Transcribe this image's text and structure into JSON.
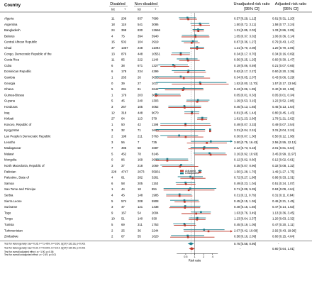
{
  "headers": {
    "country": "Country",
    "disabled": "Disabled",
    "non_disabled": "Non-disabled",
    "unadjusted": "Unadjusted risk ratio",
    "unadjusted_ci": "[95% CI]",
    "adjusted": "Adjusted risk ratio",
    "adjusted_ci": "[95% CI]",
    "tot": "tot",
    "plus": "+"
  },
  "legend": {
    "adjusted": "Adjusted",
    "unadjusted": "Unadjusted"
  },
  "x_axis_label": "Risk ratio",
  "x_ticks": [
    "0.5",
    "1",
    "2",
    "4"
  ],
  "colors": {
    "unadjusted": "#1a7f8e",
    "adjusted": "#c0392b",
    "pooled_unadj": "#1a7f8e",
    "pooled_adj": "#c0392b"
  },
  "rows": [
    {
      "country": "Algeria",
      "d_tot": "11",
      "d_pos": "208",
      "n_tot": "837",
      "n_pos": "7896",
      "u": 0.57,
      "ul": 0.29,
      "uh": 1.12,
      "u_text": "0.57 [0.29, 1.12]",
      "a": 0.61,
      "al": 0.31,
      "ah": 1.2,
      "a_text": "0.61 [0.31, 1.20]"
    },
    {
      "country": "Argentina",
      "d_tot": "18",
      "d_pos": "118",
      "n_tot": "541",
      "n_pos": "3086",
      "u": 1.5,
      "ul": 0.72,
      "uh": 3.11,
      "u_text": "1.50 [0.72, 3.11]",
      "a": 1.58,
      "al": 0.77,
      "ah": 3.24,
      "a_text": "1.58 [0.77, 3.24]"
    },
    {
      "country": "Bangladesh",
      "d_tot": "24",
      "d_pos": "398",
      "n_tot": "830",
      "n_pos": "12666",
      "u": 1.31,
      "ul": 0.85,
      "uh": 2.03,
      "u_text": "1.31 [0.85, 2.03]",
      "a": 1.33,
      "al": 0.86,
      "ah": 2.05,
      "a_text": "1.33 [0.86, 2.05]"
    },
    {
      "country": "Belarus",
      "d_tot": "4",
      "d_pos": "75",
      "n_tot": "394",
      "n_pos": "5940",
      "u": 1.05,
      "ul": 0.37,
      "uh": 3.02,
      "u_text": "1.05 [0.37, 3.02]",
      "a": 1.06,
      "al": 0.36,
      "ah": 3.14,
      "a_text": "1.06 [0.36, 3.14]"
    },
    {
      "country": "Central African Republic",
      "d_tot": "15",
      "d_pos": "502",
      "n_tot": "104",
      "n_pos": "2919",
      "u": 0.87,
      "ul": 0.36,
      "uh": 1.27,
      "u_text": "0.87 [0.36, 1.27]",
      "a": 0.79,
      "al": 0.43,
      "ah": 1.47,
      "a_text": "0.79 [0.43, 1.47]"
    },
    {
      "country": "Chad",
      "d_tot": "37",
      "d_pos": "1367",
      "n_tot": "248",
      "n_pos": "11094",
      "u": 1.21,
      "ul": 0.7,
      "uh": 2.08,
      "u_text": "1.21 [0.70, 2.08]",
      "a": 1.2,
      "al": 0.7,
      "ah": 2.05,
      "a_text": "1.20 [0.70, 2.05]"
    },
    {
      "country": "Congo, Democratic Republic of the",
      "d_tot": "13",
      "d_pos": "876",
      "n_tot": "448",
      "n_pos": "10551",
      "u": 0.34,
      "ul": 0.17,
      "uh": 0.7,
      "u_text": "0.34 [0.17, 0.70]",
      "a": 0.34,
      "al": 0.16,
      "ah": 0.69,
      "a_text": "0.34 [0.16, 0.69]"
    },
    {
      "country": "Costa Rica",
      "d_tot": "11",
      "d_pos": "85",
      "n_tot": "222",
      "n_pos": "1140",
      "u": 0.56,
      "ul": 0.25,
      "uh": 1.25,
      "u_text": "0.56 [0.25, 1.25]",
      "a": 0.6,
      "al": 0.3,
      "ah": 1.47,
      "a_text": "0.60 [0.30, 1.47]"
    },
    {
      "country": "Cuba",
      "d_tot": "6",
      "d_pos": "38",
      "n_tot": "671",
      "n_pos": "1327",
      "u": 0.19,
      "ul": 0.06,
      "uh": 0.59,
      "u_text": "0.19 [0.06, 0.59]",
      "a": 0.21,
      "al": 0.07,
      "ah": 0.65,
      "a_text": "0.21 [0.07, 0.65]"
    },
    {
      "country": "Dominican Republic",
      "d_tot": "6",
      "d_pos": "178",
      "n_tot": "234",
      "n_pos": "4399",
      "u": 0.62,
      "ul": 0.17,
      "uh": 2.27,
      "u_text": "0.62 [0.17, 2.27]",
      "a": 0.6,
      "al": 0.2,
      "ah": 2.39,
      "a_text": "0.60 [0.20, 2.39]"
    },
    {
      "country": "Gambia",
      "d_tot": "1",
      "d_pos": "265",
      "n_tot": "26",
      "n_pos": "3655",
      "u": 0.34,
      "ul": 0.05,
      "uh": 2.07,
      "u_text": "0.34 [0.05, 2.07]",
      "a": 0.43,
      "al": 0.06,
      "ah": 3.29,
      "a_text": "0.43 [0.06, 3.29]"
    },
    {
      "country": "Georgia",
      "d_tot": "0",
      "d_pos": "39",
      "n_tot": "27",
      "n_pos": "1017",
      "u": 1.52,
      "ul": 0.0,
      "uh": 11.7,
      "u_text": "1.52 [0.00, 11.70]",
      "a": 1.57,
      "al": 0.17,
      "ah": 13.94,
      "a_text": "1.57 [0.17, 13.94]"
    },
    {
      "country": "Ghana",
      "d_tot": "5",
      "d_pos": "291",
      "n_tot": "81",
      "n_pos": "2644",
      "u": 0.43,
      "ul": 0.06,
      "uh": 1.95,
      "u_text": "0.43 [0.06, 1.95]",
      "a": 0.4,
      "al": 0.1,
      "ah": 1.98,
      "a_text": "0.40 [0.10, 1.98]"
    },
    {
      "country": "Guinea-Bissau",
      "d_tot": "1",
      "d_pos": "179",
      "n_tot": "203",
      "n_pos": "3662",
      "u": 0.05,
      "ul": 0.01,
      "uh": 0.33,
      "u_text": "0.05 [0.01, 0.33]",
      "a": 0.05,
      "al": 0.01,
      "ah": 0.34,
      "a_text": "0.05 [0.01, 0.34]"
    },
    {
      "country": "Guyana",
      "d_tot": "5",
      "d_pos": "45",
      "n_tot": "240",
      "n_pos": "1303",
      "u": 1.29,
      "ul": 0.53,
      "uh": 3.15,
      "u_text": "1.29 [0.53, 3.15]",
      "a": 1.22,
      "al": 0.52,
      "ah": 2.86,
      "a_text": "1.22 [0.52, 2.86]"
    },
    {
      "country": "Honduras",
      "d_tot": "3",
      "d_pos": "267",
      "n_tot": "105",
      "n_pos": "4062",
      "u": 0.45,
      "ul": 0.13,
      "uh": 1.65,
      "u_text": "0.45 [0.13, 1.65]",
      "a": 0.46,
      "al": 0.13,
      "ah": 1.64,
      "a_text": "0.46 [0.13, 1.64]"
    },
    {
      "country": "Iraq",
      "d_tot": "12",
      "d_pos": "318",
      "n_tot": "448",
      "n_pos": "9070",
      "u": 0.81,
      "ul": 0.45,
      "uh": 1.44,
      "u_text": "0.81 [0.45, 1.44]",
      "a": 0.8,
      "al": 0.45,
      "ah": 1.43,
      "a_text": "0.80 [0.45, 1.43]"
    },
    {
      "country": "Kiribati",
      "d_tot": "27",
      "d_pos": "64",
      "n_tot": "113",
      "n_pos": "579",
      "u": 1.81,
      "ul": 1.23,
      "uh": 2.66,
      "u_text": "1.81 [1.23, 2.66]",
      "a": 1.79,
      "al": 1.21,
      "ah": 2.62,
      "a_text": "1.79 [1.21, 2.62]"
    },
    {
      "country": "Kosovo, Republic of",
      "d_tot": "1",
      "d_pos": "50",
      "n_tot": "42",
      "n_pos": "1198",
      "u": 0.49,
      "ul": 0.07,
      "uh": 3.33,
      "u_text": "0.49 [0.07, 3.33]",
      "a": 0.49,
      "al": 0.07,
      "ah": 3.54,
      "a_text": "0.49 [0.07, 3.54]"
    },
    {
      "country": "Kyrgyzstan",
      "d_tot": "3",
      "d_pos": "32",
      "n_tot": "71",
      "n_pos": "1600",
      "u": 3.31,
      "ul": 0.04,
      "uh": 2.24,
      "u_text": "3.31 [0.04, 2.24]",
      "a": 3.31,
      "al": 0.04,
      "ah": 2.24,
      "a_text": "3.31 [0.04, 2.24]"
    },
    {
      "country": "Lao People's Democratic Republic",
      "d_tot": "2",
      "d_pos": "198",
      "n_tot": "211",
      "n_pos": "5763",
      "u": 0.3,
      "ul": 0.07,
      "uh": 1.3,
      "u_text": "0.30 [0.07, 1.30]",
      "a": 0.5,
      "al": 0.12,
      "ah": 1.96,
      "a_text": "0.50 [0.12, 1.96]"
    },
    {
      "country": "Lesotho",
      "d_tot": "3",
      "d_pos": "56",
      "n_tot": "7",
      "n_pos": "735",
      "u": 3.5,
      "ul": 0.75,
      "uh": 16.43,
      "u_text": "3.50 [0.75, 16.43]",
      "a": 2.56,
      "al": 0.55,
      "ah": 12.12,
      "a_text": "2.56 [0.55, 12.12]"
    },
    {
      "country": "Madagascar",
      "d_tot": "7",
      "d_pos": "495",
      "n_tot": "58",
      "n_pos": "4687",
      "u": 2.12,
      "ul": 0.73,
      "uh": 6.18,
      "u_text": "2.12 [0.73, 6.18]",
      "a": 2.01,
      "al": 0.61,
      "ah": 6.64,
      "a_text": "2.01 [0.61, 6.64]"
    },
    {
      "country": "Malawi",
      "d_tot": "5",
      "d_pos": "452",
      "n_tot": "78",
      "n_pos": "8146",
      "u": 3.16,
      "ul": 0.92,
      "ah_dummy": 0,
      "uh": 10.93,
      "u_text": "3.16 [0.92, 10.93]",
      "a": 3.45,
      "al": 0.99,
      "ah": 11.97,
      "a_text": "3.45 [0.99, 11.97]"
    },
    {
      "country": "Mongolia",
      "d_tot": "0",
      "d_pos": "86",
      "n_tot": "169",
      "n_pos": "2900",
      "u": 0.12,
      "ul": 0.02,
      "uh": 0.6,
      "u_text": "0.12 [0.02, 0.60]",
      "a": 0.12,
      "al": 0.02,
      "ah": 0.61,
      "a_text": "0.12 [0.02, 0.61]"
    },
    {
      "country": "North Macedonia, Republic of",
      "d_tot": "3",
      "d_pos": "37",
      "n_tot": "218",
      "n_pos": "1069",
      "u": 0.35,
      "ul": 0.07,
      "uh": 0.96,
      "u_text": "0.35 [0.07, 0.96]",
      "a": 0.32,
      "al": 0.08,
      "ah": 1.32,
      "a_text": "0.32 [0.08, 1.32]"
    },
    {
      "country": "Pakistan",
      "d_tot": "228",
      "d_pos": "4747",
      "n_tot": "2073",
      "n_pos": "55931",
      "u": 1.5,
      "ul": 1.28,
      "uh": 1.76,
      "u_text": "1.50 [1.28, 1.76]",
      "a": 1.49,
      "al": 1.27,
      "ah": 1.75,
      "a_text": "1.49 [1.27, 1.75]"
    },
    {
      "country": "Palestine, State of",
      "d_tot": "4",
      "d_pos": "81",
      "n_tot": "282",
      "n_pos": "3261",
      "u": 0.72,
      "ul": 0.27,
      "uh": 1.88,
      "u_text": "0.72 [0.27, 1.88]",
      "a": 0.86,
      "al": 0.33,
      "ah": 2.31,
      "a_text": "0.86 [0.33, 2.31]"
    },
    {
      "country": "Samoa",
      "d_tot": "6",
      "d_pos": "58",
      "n_tot": "205",
      "n_pos": "1153",
      "u": 0.49,
      "ul": 0.23,
      "uh": 1.04,
      "u_text": "0.49 [0.23, 1.04]",
      "a": 0.51,
      "al": 0.24,
      "ah": 1.07,
      "a_text": "0.51 [0.24, 1.07]"
    },
    {
      "country": "Sao Tome and Principe",
      "d_tot": "1",
      "d_pos": "44",
      "n_tot": "18",
      "n_pos": "851",
      "u": 0.71,
      "ul": 0.09,
      "uh": 5.35,
      "u_text": "0.71 [0.09, 5.35]",
      "a": 0.63,
      "al": 0.09,
      "ah": 4.64,
      "a_text": "0.63 [0.09, 4.64]"
    },
    {
      "country": "Serbia",
      "d_tot": "4",
      "d_pos": "45",
      "n_tot": "148",
      "n_pos": "1985",
      "u": 0.31,
      "ul": 0.11,
      "uh": 0.79,
      "u_text": "0.31 [0.11, 0.79]",
      "a": 0.31,
      "al": 0.11,
      "ah": 0.84,
      "a_text": "0.31 [0.11, 0.84]"
    },
    {
      "country": "Sierra Leone",
      "d_tot": "5",
      "d_pos": "574",
      "n_tot": "208",
      "n_pos": "5908",
      "u": 0.45,
      "ul": 0.15,
      "uh": 1.36,
      "u_text": "0.45 [0.15, 1.36]",
      "a": 0.46,
      "al": 0.21,
      "ah": 1.45,
      "a_text": "0.46 [0.21, 1.45]"
    },
    {
      "country": "Suriname",
      "d_tot": "3",
      "d_pos": "47",
      "n_tot": "121",
      "n_pos": "1438",
      "u": 0.48,
      "ul": 0.15,
      "uh": 1.56,
      "u_text": "0.48 [0.15, 1.56]",
      "a": 0.47,
      "al": 0.14,
      "ah": 1.53,
      "a_text": "0.47 [0.14, 1.53]"
    },
    {
      "country": "Togo",
      "d_tot": "9",
      "d_pos": "167",
      "n_tot": "54",
      "n_pos": "2004",
      "u": 1.63,
      "ul": 0.76,
      "uh": 3.49,
      "u_text": "1.63 [0.76, 3.49]",
      "a": 1.13,
      "al": 0.36,
      "ah": 3.45,
      "a_text": "1.13 [0.36, 3.45]"
    },
    {
      "country": "Tonga",
      "d_tot": "10",
      "d_pos": "51",
      "n_tot": "140",
      "n_pos": "630",
      "u": 1.23,
      "ul": 0.64,
      "uh": 2.37,
      "u_text": "1.23 [0.64, 2.37]",
      "a": 1.2,
      "al": 0.63,
      "ah": 2.32,
      "a_text": "1.20 [0.63, 2.32]"
    },
    {
      "country": "Tunisia",
      "d_tot": "5",
      "d_pos": "69",
      "n_tot": "311",
      "n_pos": "1753",
      "u": 0.45,
      "ul": 0.19,
      "uh": 1.05,
      "u_text": "0.45 [0.19, 1.05]",
      "a": 0.47,
      "al": 0.2,
      "ah": 1.11,
      "a_text": "0.47 [0.20, 1.11]"
    },
    {
      "country": "Turkmenistan",
      "d_tot": "2",
      "d_pos": "25",
      "n_tot": "36",
      "n_pos": "2244",
      "u": 2.07,
      "ul": 0.42,
      "uh": 10.09,
      "u_text": "2.07 [0.42, 10.09]",
      "a": 2.92,
      "al": 0.43,
      "ah": 19.96,
      "a_text": "2.92 [0.43, 19.96]"
    },
    {
      "country": "Zimbabwe",
      "d_tot": "2",
      "d_pos": "67",
      "n_tot": "55",
      "n_pos": "1620",
      "u": 0.58,
      "ul": 0.16,
      "uh": 2.09,
      "u_text": "0.58 [0.16, 2.09]",
      "a": 0.6,
      "al": 0.15,
      "ah": 4.64,
      "a_text": "0.60 [0.15, 4.64]"
    }
  ],
  "pooled": {
    "unadj_label": "Test for heterogeneity: tau²=0.35, I²=71.45%, H²=3.50, Q(37)=132.33, p<0.001",
    "unadj_text": "0.75 [0.58, 0.95]",
    "unadj": 0.75,
    "unadj_l": 0.58,
    "unadj_h": 0.95,
    "adj_label": "Test for heterogeneity: tau²=0.34, I²=70.92%, H²=3.44, Q(37)=130.90, p<0.001",
    "adj_text": "0.80 [0.64, 1.01]",
    "adj": 0.8,
    "adj_l": 0.64,
    "adj_h": 1.01,
    "dash": "-",
    "overall_label": "Test for overall adjusted effect: z=−1.90, p=0.06",
    "overall_label2": "Test for overall unadjusted effect: z=−2.49, p=0.01"
  },
  "chart_data": {
    "type": "forest",
    "title": "",
    "xlabel": "Risk ratio",
    "x_scale": "log",
    "xlim": [
      0.05,
      16
    ],
    "xticks": [
      0.5,
      1,
      2,
      4
    ],
    "reference_line": 1,
    "legend": [
      "Adjusted",
      "Unadjusted"
    ],
    "series": [
      {
        "name": "Unadjusted",
        "values": [
          [
            0.57,
            0.29,
            1.12
          ],
          [
            1.5,
            0.72,
            3.11
          ],
          [
            1.31,
            0.85,
            2.03
          ],
          [
            1.05,
            0.37,
            3.02
          ],
          [
            0.87,
            0.36,
            1.27
          ],
          [
            1.21,
            0.7,
            2.08
          ],
          [
            0.34,
            0.17,
            0.7
          ],
          [
            0.56,
            0.25,
            1.25
          ],
          [
            0.19,
            0.06,
            0.59
          ],
          [
            0.62,
            0.17,
            2.27
          ],
          [
            0.34,
            0.05,
            2.07
          ],
          [
            1.52,
            0.0,
            11.7
          ],
          [
            0.43,
            0.06,
            1.95
          ],
          [
            0.05,
            0.01,
            0.33
          ],
          [
            1.29,
            0.53,
            3.15
          ],
          [
            0.45,
            0.13,
            1.65
          ],
          [
            0.81,
            0.45,
            1.44
          ],
          [
            1.81,
            1.23,
            2.66
          ],
          [
            0.49,
            0.07,
            3.33
          ],
          [
            3.31,
            0.04,
            2.24
          ],
          [
            0.3,
            0.07,
            1.3
          ],
          [
            3.5,
            0.75,
            16.43
          ],
          [
            2.12,
            0.73,
            6.18
          ],
          [
            3.16,
            0.92,
            10.93
          ],
          [
            0.12,
            0.02,
            0.6
          ],
          [
            0.35,
            0.07,
            0.96
          ],
          [
            1.5,
            1.28,
            1.76
          ],
          [
            0.72,
            0.27,
            1.88
          ],
          [
            0.49,
            0.23,
            1.04
          ],
          [
            0.71,
            0.09,
            5.35
          ],
          [
            0.31,
            0.11,
            0.79
          ],
          [
            0.45,
            0.15,
            1.36
          ],
          [
            0.48,
            0.15,
            1.56
          ],
          [
            1.63,
            0.76,
            3.49
          ],
          [
            1.23,
            0.64,
            2.37
          ],
          [
            0.45,
            0.19,
            1.05
          ],
          [
            2.07,
            0.42,
            10.09
          ],
          [
            0.58,
            0.16,
            2.09
          ]
        ]
      },
      {
        "name": "Adjusted",
        "values": [
          [
            0.61,
            0.31,
            1.2
          ],
          [
            1.58,
            0.77,
            3.24
          ],
          [
            1.33,
            0.86,
            2.05
          ],
          [
            1.06,
            0.36,
            3.14
          ],
          [
            0.79,
            0.43,
            1.47
          ],
          [
            1.2,
            0.7,
            2.05
          ],
          [
            0.34,
            0.16,
            0.69
          ],
          [
            0.6,
            0.3,
            1.47
          ],
          [
            0.21,
            0.07,
            0.65
          ],
          [
            0.6,
            0.2,
            2.39
          ],
          [
            0.43,
            0.06,
            3.29
          ],
          [
            1.57,
            0.17,
            13.94
          ],
          [
            0.4,
            0.1,
            1.98
          ],
          [
            0.05,
            0.01,
            0.34
          ],
          [
            1.22,
            0.52,
            2.86
          ],
          [
            0.46,
            0.13,
            1.64
          ],
          [
            0.8,
            0.45,
            1.43
          ],
          [
            1.79,
            1.21,
            2.62
          ],
          [
            0.49,
            0.07,
            3.54
          ],
          [
            3.31,
            0.04,
            2.24
          ],
          [
            0.5,
            0.12,
            1.96
          ],
          [
            2.56,
            0.55,
            12.12
          ],
          [
            2.01,
            0.61,
            6.64
          ],
          [
            3.45,
            0.99,
            11.97
          ],
          [
            0.12,
            0.02,
            0.61
          ],
          [
            0.32,
            0.08,
            1.32
          ],
          [
            1.49,
            1.27,
            1.75
          ],
          [
            0.86,
            0.33,
            2.31
          ],
          [
            0.51,
            0.24,
            1.07
          ],
          [
            0.63,
            0.09,
            4.64
          ],
          [
            0.31,
            0.11,
            0.84
          ],
          [
            0.46,
            0.21,
            1.45
          ],
          [
            0.47,
            0.14,
            1.53
          ],
          [
            1.13,
            0.36,
            3.45
          ],
          [
            1.2,
            0.63,
            2.32
          ],
          [
            0.47,
            0.2,
            1.11
          ],
          [
            2.92,
            0.43,
            19.96
          ],
          [
            0.6,
            0.15,
            4.64
          ]
        ]
      }
    ],
    "pooled": {
      "unadjusted": [
        0.75,
        0.58,
        0.95
      ],
      "adjusted": [
        0.8,
        0.64,
        1.01
      ]
    }
  }
}
